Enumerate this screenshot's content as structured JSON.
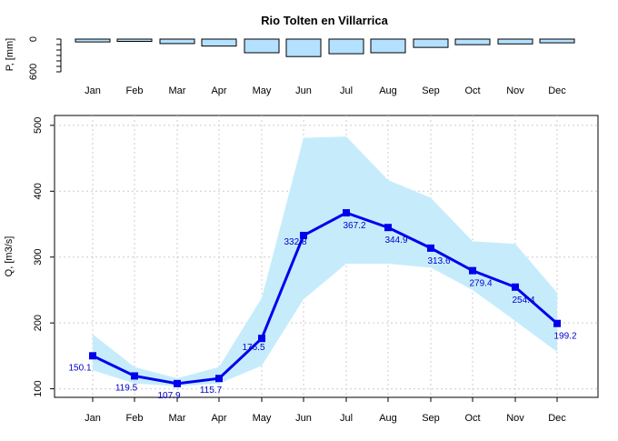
{
  "chart_data": [
    {
      "type": "bar",
      "title": "Rio Tolten en Villarrica",
      "xlabel": "",
      "ylabel": "P, [mm]",
      "categories": [
        "Jan",
        "Feb",
        "Mar",
        "Apr",
        "May",
        "Jun",
        "Jul",
        "Aug",
        "Sep",
        "Oct",
        "Nov",
        "Dec"
      ],
      "values": [
        52,
        42,
        82,
        128,
        250,
        320,
        268,
        250,
        152,
        102,
        88,
        68
      ],
      "yticks": [
        "0",
        "600"
      ],
      "ylim": [
        0,
        600
      ],
      "inverted": true,
      "bar_color": "#b3e1ff"
    },
    {
      "type": "line",
      "title": "",
      "xlabel": "",
      "ylabel": "Q, [m3/s]",
      "categories": [
        "Jan",
        "Feb",
        "Mar",
        "Apr",
        "May",
        "Jun",
        "Jul",
        "Aug",
        "Sep",
        "Oct",
        "Nov",
        "Dec"
      ],
      "series": [
        {
          "values": [
            150.1,
            119.5,
            107.9,
            115.7,
            176.5,
            332.8,
            367.2,
            344.9,
            313.6,
            279.4,
            254.4,
            199.2
          ],
          "labels": [
            "150.1",
            "119.5",
            "107.9",
            "115.7",
            "176.5",
            "332.8",
            "367.2",
            "344.9",
            "313.6",
            "279.4",
            "254.4",
            "199.2"
          ]
        }
      ],
      "band_upper": [
        183,
        133,
        116,
        133,
        238,
        481,
        483,
        417,
        390,
        324,
        320,
        246
      ],
      "band_lower": [
        128,
        108,
        104,
        108,
        135,
        236,
        290,
        290,
        284,
        250,
        203,
        156
      ],
      "yticks": [
        "100",
        "200",
        "300",
        "400",
        "500"
      ],
      "ylim": [
        87,
        515
      ],
      "grid": true,
      "line_color": "#0000ee",
      "band_color": "#c6ecfc",
      "label_color": "#0000cc"
    }
  ]
}
